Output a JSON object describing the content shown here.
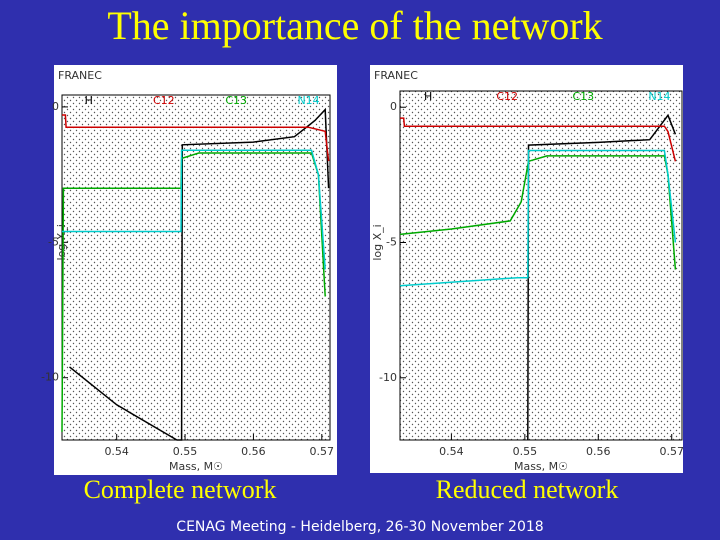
{
  "title": "The importance of the network",
  "footer": "CENAG Meeting - Heidelberg, 26-30 November 2018",
  "chart_data": [
    {
      "type": "line",
      "caption": "Complete network",
      "brand": "FRANEC",
      "xlabel": "Mass, M☉",
      "ylabel": "log X_i",
      "xlim": [
        0.532,
        0.5712
      ],
      "xticks": [
        0.54,
        0.55,
        0.56,
        0.57
      ],
      "ylim": [
        -12.3,
        0.44
      ],
      "yticks": [
        0,
        -5,
        -10
      ],
      "series": [
        {
          "name": "H",
          "color": "#000000",
          "x": [
            0.5331,
            0.54,
            0.5488,
            0.5495,
            0.5496,
            0.56,
            0.566,
            0.569,
            0.5705,
            0.571
          ],
          "values": [
            -9.6,
            -11,
            -12.3,
            -12.3,
            -1.4,
            -1.3,
            -1.1,
            -0.5,
            -0.1,
            -3
          ]
        },
        {
          "name": "C12",
          "color": "#cc0000",
          "x": [
            0.532,
            0.5325,
            0.5326,
            0.568,
            0.5705,
            0.571
          ],
          "values": [
            -0.3,
            -0.3,
            -0.75,
            -0.75,
            -0.9,
            -2
          ]
        },
        {
          "name": "C13",
          "color": "#00aa00",
          "x": [
            0.532,
            0.5322,
            0.5494,
            0.5495,
            0.552,
            0.5685,
            0.5695,
            0.5705
          ],
          "values": [
            -12,
            -3,
            -3,
            -1.9,
            -1.7,
            -1.7,
            -2.5,
            -7
          ]
        },
        {
          "name": "N14",
          "color": "#00cccc",
          "x": [
            0.532,
            0.5494,
            0.5495,
            0.5685,
            0.5695,
            0.5705
          ],
          "values": [
            -4.6,
            -4.6,
            -1.6,
            -1.6,
            -2.5,
            -6
          ]
        }
      ]
    },
    {
      "type": "line",
      "caption": "Reduced network",
      "brand": "FRANEC",
      "xlabel": "Mass, M☉",
      "ylabel": "log X_i",
      "xlim": [
        0.533,
        0.5714
      ],
      "xticks": [
        0.54,
        0.55,
        0.56,
        0.57
      ],
      "ylim": [
        -12.3,
        0.6
      ],
      "yticks": [
        0,
        -5,
        -10
      ],
      "series": [
        {
          "name": "H",
          "color": "#000000",
          "x": [
            0.5504,
            0.5505,
            0.56,
            0.567,
            0.5695,
            0.5705
          ],
          "values": [
            -12.3,
            -1.4,
            -1.3,
            -1.2,
            -0.3,
            -1
          ]
        },
        {
          "name": "C12",
          "color": "#cc0000",
          "x": [
            0.533,
            0.5335,
            0.5336,
            0.569,
            0.5695,
            0.5705
          ],
          "values": [
            -0.4,
            -0.4,
            -0.7,
            -0.7,
            -0.9,
            -2
          ]
        },
        {
          "name": "C13",
          "color": "#00aa00",
          "x": [
            0.533,
            0.54,
            0.548,
            0.5495,
            0.5505,
            0.553,
            0.569,
            0.5695,
            0.5705
          ],
          "values": [
            -4.7,
            -4.5,
            -4.2,
            -3.5,
            -2,
            -1.8,
            -1.8,
            -2.5,
            -6
          ]
        },
        {
          "name": "N14",
          "color": "#00cccc",
          "x": [
            0.533,
            0.549,
            0.5504,
            0.5505,
            0.569,
            0.5695,
            0.5705
          ],
          "values": [
            -6.6,
            -6.3,
            -6.3,
            -1.6,
            -1.6,
            -2.5,
            -5
          ]
        }
      ]
    }
  ]
}
